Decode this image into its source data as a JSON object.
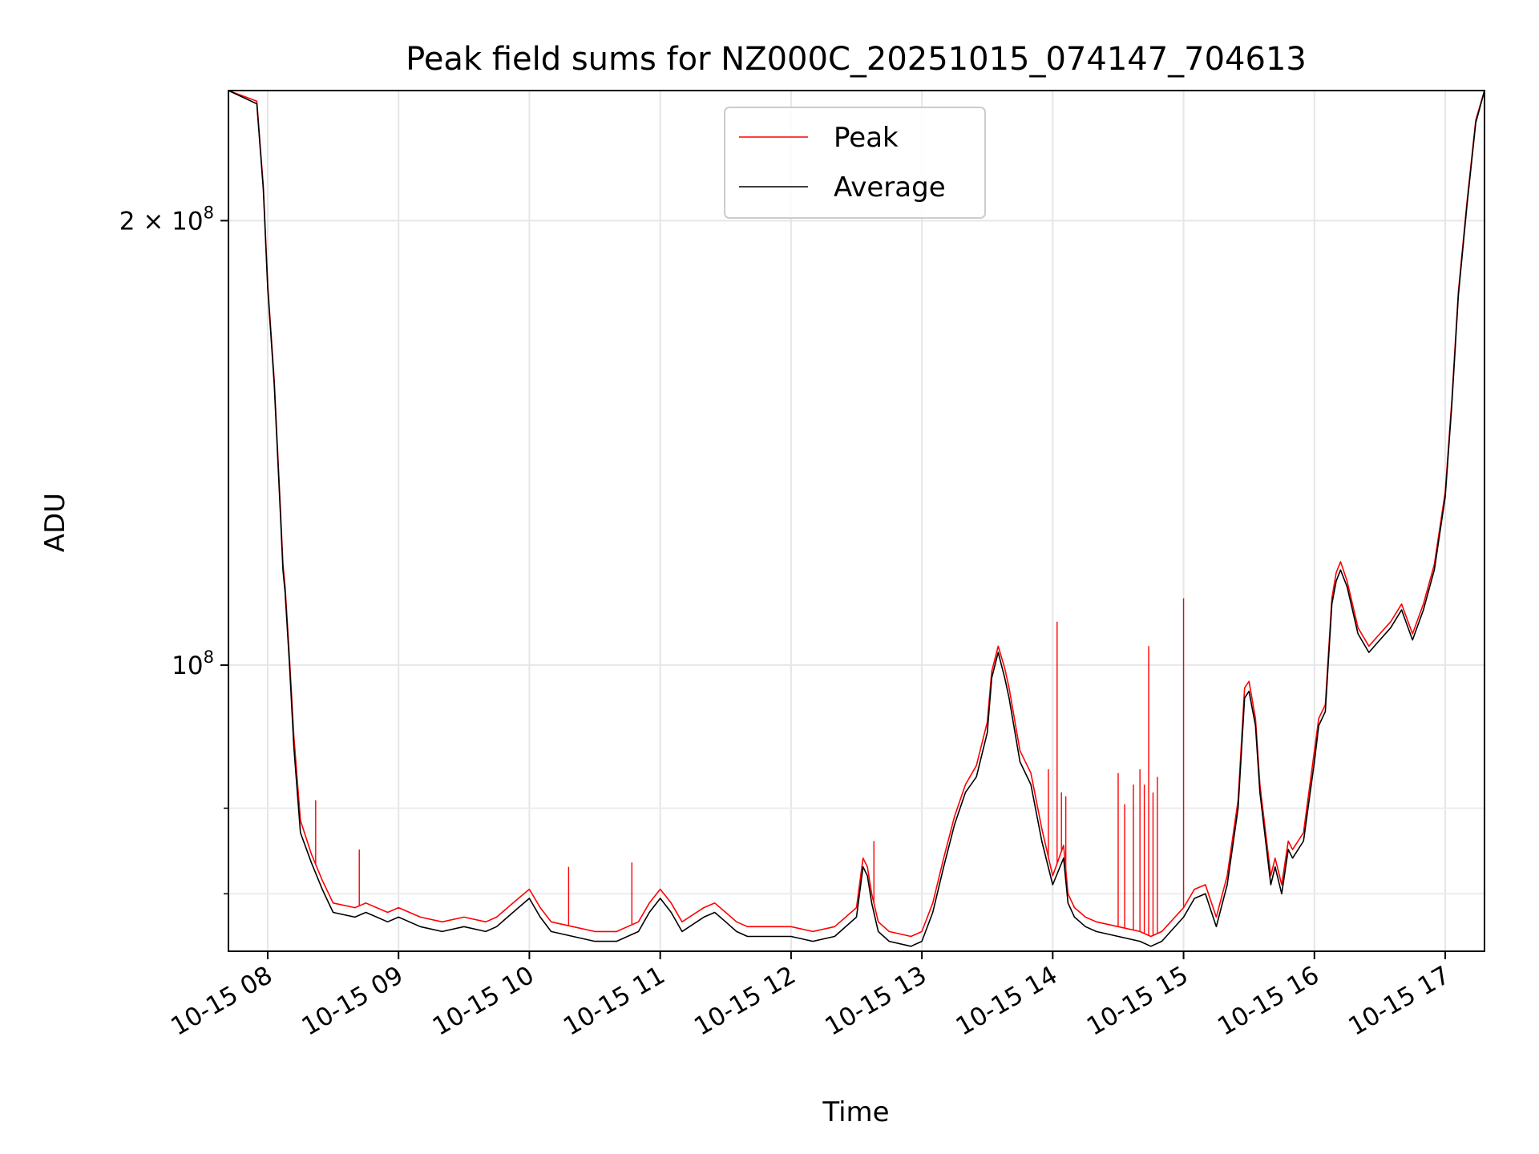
{
  "chart_data": {
    "type": "line",
    "title": "Peak field sums for NZ000C_20251015_074147_704613",
    "xlabel": "Time",
    "ylabel": "ADU",
    "yscale": "log",
    "xlim": [
      "2025-10-15 07:42",
      "2025-10-15 17:18"
    ],
    "ylim": [
      64000000,
      245000000
    ],
    "grid": true,
    "legend": {
      "placement": "top-center",
      "entries": [
        "Peak",
        "Average"
      ]
    },
    "colors": {
      "Peak": "#ff0000",
      "Average": "#000000"
    },
    "xticks": [
      "10-15 08",
      "10-15 09",
      "10-15 10",
      "10-15 11",
      "10-15 12",
      "10-15 13",
      "10-15 14",
      "10-15 15",
      "10-15 16",
      "10-15 17"
    ],
    "xtick_times": [
      "08:00",
      "09:00",
      "10:00",
      "11:00",
      "12:00",
      "13:00",
      "14:00",
      "15:00",
      "16:00",
      "17:00"
    ],
    "yticks": [
      {
        "value": 100000000,
        "base": "10",
        "exp": "8",
        "coef": ""
      },
      {
        "value": 200000000,
        "base": "10",
        "exp": "8",
        "coef": "2 × "
      }
    ],
    "yminor_ticks": [
      70000000,
      80000000
    ],
    "series": [
      {
        "name": "Average",
        "x": [
          "07:42",
          "07:55",
          "07:58",
          "08:00",
          "08:03",
          "08:06",
          "08:07",
          "08:08",
          "08:10",
          "08:12",
          "08:15",
          "08:20",
          "08:25",
          "08:30",
          "08:40",
          "08:45",
          "08:55",
          "09:00",
          "09:10",
          "09:20",
          "09:30",
          "09:40",
          "09:45",
          "09:50",
          "09:55",
          "10:00",
          "10:05",
          "10:10",
          "10:20",
          "10:30",
          "10:40",
          "10:50",
          "10:55",
          "11:00",
          "11:05",
          "11:10",
          "11:20",
          "11:25",
          "11:30",
          "11:35",
          "11:40",
          "11:50",
          "12:00",
          "12:10",
          "12:20",
          "12:30",
          "12:33",
          "12:35",
          "12:37",
          "12:40",
          "12:45",
          "12:55",
          "13:00",
          "13:05",
          "13:10",
          "13:15",
          "13:20",
          "13:25",
          "13:30",
          "13:32",
          "13:35",
          "13:38",
          "13:40",
          "13:45",
          "13:50",
          "13:55",
          "14:00",
          "14:05",
          "14:07",
          "14:10",
          "14:15",
          "14:20",
          "14:30",
          "14:40",
          "14:45",
          "14:50",
          "15:00",
          "15:05",
          "15:10",
          "15:15",
          "15:20",
          "15:25",
          "15:28",
          "15:30",
          "15:33",
          "15:35",
          "15:40",
          "15:42",
          "15:45",
          "15:48",
          "15:50",
          "15:55",
          "16:00",
          "16:02",
          "16:05",
          "16:08",
          "16:10",
          "16:12",
          "16:15",
          "16:20",
          "16:25",
          "16:30",
          "16:35",
          "16:40",
          "16:45",
          "16:50",
          "16:55",
          "17:00",
          "17:03",
          "17:06",
          "17:10",
          "17:14",
          "17:18"
        ],
        "y": [
          245000000,
          240000000,
          210000000,
          180000000,
          155000000,
          125000000,
          116000000,
          112000000,
          100000000,
          88000000,
          77000000,
          73500000,
          70500000,
          68000000,
          67500000,
          68000000,
          67000000,
          67500000,
          66500000,
          66000000,
          66500000,
          66000000,
          66500000,
          67500000,
          68500000,
          69500000,
          67500000,
          66000000,
          65500000,
          65000000,
          65000000,
          66000000,
          68000000,
          69500000,
          68000000,
          66000000,
          67500000,
          68000000,
          67000000,
          66000000,
          65500000,
          65500000,
          65500000,
          65000000,
          65500000,
          67500000,
          73000000,
          72000000,
          69000000,
          66000000,
          65000000,
          64500000,
          65000000,
          68000000,
          73000000,
          78000000,
          82000000,
          84000000,
          90000000,
          98000000,
          102000000,
          98000000,
          95000000,
          86000000,
          83000000,
          76000000,
          71000000,
          74000000,
          69000000,
          67500000,
          66500000,
          66000000,
          65500000,
          65000000,
          64500000,
          65000000,
          67500000,
          69500000,
          70000000,
          66500000,
          71000000,
          80000000,
          95000000,
          96000000,
          91000000,
          82000000,
          71000000,
          73000000,
          70000000,
          75000000,
          74000000,
          76000000,
          86000000,
          91000000,
          93000000,
          110000000,
          114000000,
          116000000,
          113000000,
          105000000,
          102000000,
          104000000,
          106000000,
          109000000,
          104000000,
          109000000,
          116000000,
          130000000,
          150000000,
          178000000,
          205000000,
          233000000,
          245000000
        ]
      },
      {
        "name": "Peak",
        "x": [
          "07:42",
          "07:55",
          "07:58",
          "08:00",
          "08:03",
          "08:06",
          "08:07",
          "08:08",
          "08:10",
          "08:12",
          "08:15",
          "08:20",
          "08:25",
          "08:30",
          "08:40",
          "08:45",
          "08:55",
          "09:00",
          "09:10",
          "09:20",
          "09:30",
          "09:40",
          "09:45",
          "09:50",
          "09:55",
          "10:00",
          "10:05",
          "10:10",
          "10:20",
          "10:30",
          "10:40",
          "10:50",
          "10:55",
          "11:00",
          "11:05",
          "11:10",
          "11:20",
          "11:25",
          "11:30",
          "11:35",
          "11:40",
          "11:50",
          "12:00",
          "12:10",
          "12:20",
          "12:30",
          "12:33",
          "12:35",
          "12:37",
          "12:40",
          "12:45",
          "12:55",
          "13:00",
          "13:05",
          "13:10",
          "13:15",
          "13:20",
          "13:25",
          "13:30",
          "13:32",
          "13:35",
          "13:38",
          "13:40",
          "13:45",
          "13:50",
          "13:55",
          "14:00",
          "14:05",
          "14:07",
          "14:10",
          "14:15",
          "14:20",
          "14:30",
          "14:40",
          "14:45",
          "14:50",
          "15:00",
          "15:05",
          "15:10",
          "15:15",
          "15:20",
          "15:25",
          "15:28",
          "15:30",
          "15:33",
          "15:35",
          "15:40",
          "15:42",
          "15:45",
          "15:48",
          "15:50",
          "15:55",
          "16:00",
          "16:02",
          "16:05",
          "16:08",
          "16:10",
          "16:12",
          "16:15",
          "16:20",
          "16:25",
          "16:30",
          "16:35",
          "16:40",
          "16:45",
          "16:50",
          "16:55",
          "17:00",
          "17:03",
          "17:06",
          "17:10",
          "17:14",
          "17:18"
        ],
        "y": [
          245000000,
          241000000,
          211000000,
          181000000,
          156000000,
          126000000,
          117000000,
          113000000,
          101000000,
          89500000,
          78500000,
          74500000,
          71500000,
          69000000,
          68500000,
          69000000,
          68000000,
          68500000,
          67500000,
          67000000,
          67500000,
          67000000,
          67500000,
          68500000,
          69500000,
          70500000,
          68500000,
          67000000,
          66500000,
          66000000,
          66000000,
          67000000,
          69000000,
          70500000,
          69000000,
          67000000,
          68500000,
          69000000,
          68000000,
          67000000,
          66500000,
          66500000,
          66500000,
          66000000,
          66500000,
          68500000,
          74000000,
          73000000,
          70000000,
          67000000,
          66000000,
          65500000,
          66000000,
          69000000,
          74000000,
          79000000,
          83000000,
          85500000,
          91500000,
          99000000,
          103000000,
          99500000,
          96500000,
          87500000,
          84500000,
          77500000,
          72000000,
          75500000,
          70000000,
          68500000,
          67500000,
          67000000,
          66500000,
          66000000,
          65500000,
          66000000,
          68500000,
          70500000,
          71000000,
          67500000,
          72000000,
          81000000,
          96500000,
          97500000,
          92000000,
          83000000,
          72000000,
          74000000,
          71000000,
          76000000,
          75000000,
          77000000,
          87500000,
          92000000,
          94000000,
          111000000,
          115500000,
          117500000,
          114000000,
          106000000,
          103000000,
          105000000,
          107000000,
          110000000,
          105000000,
          110000000,
          117000000,
          131000000,
          151000000,
          179000000,
          206000000,
          234000000,
          245000000
        ]
      }
    ],
    "spikes": {
      "name": "Peak",
      "x": [
        "08:22",
        "08:42",
        "10:18",
        "10:47",
        "12:38",
        "13:58",
        "14:02",
        "14:04",
        "14:06",
        "14:30",
        "14:33",
        "14:37",
        "14:40",
        "14:42",
        "14:44",
        "14:46",
        "14:48",
        "15:00"
      ],
      "y": [
        81000000,
        75000000,
        73000000,
        73500000,
        76000000,
        85000000,
        107000000,
        82000000,
        81500000,
        84500000,
        80500000,
        83000000,
        85000000,
        83000000,
        103000000,
        82000000,
        84000000,
        111000000
      ]
    }
  }
}
